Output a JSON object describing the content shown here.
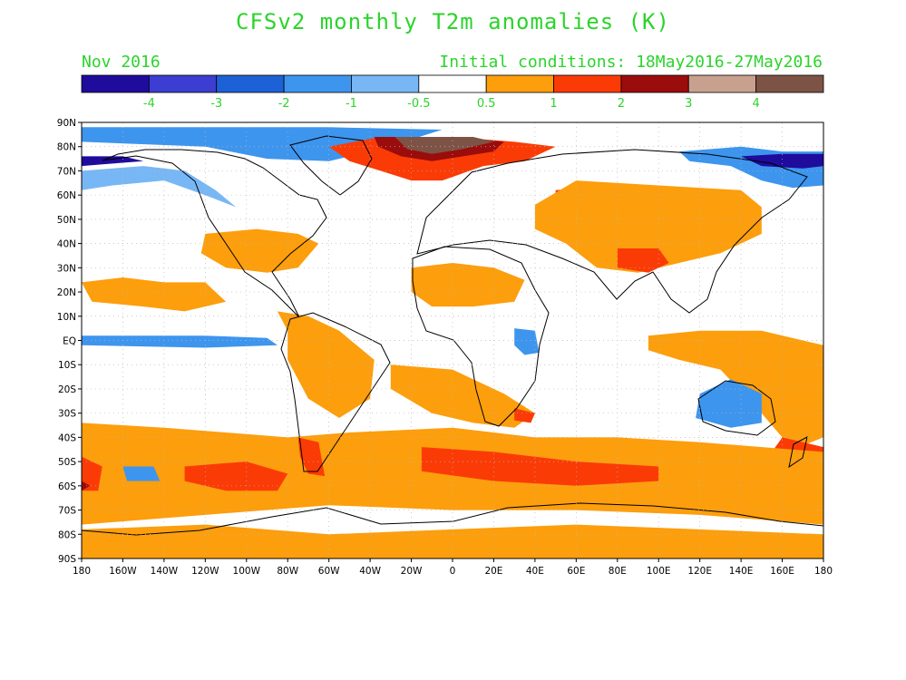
{
  "title": "CFSv2 monthly T2m anomalies (K)",
  "subtitle_left": "Nov 2016",
  "subtitle_right": "Initial conditions: 18May2016-27May2016",
  "colorbar": {
    "colors": [
      "#1f0b9c",
      "#3c3ed1",
      "#1d61d6",
      "#3d95ee",
      "#78b7f5",
      "#ffffff",
      "#fd9e0c",
      "#fb3b06",
      "#9b0c0c",
      "#c8a18e",
      "#7d5346"
    ],
    "labels": [
      "-4",
      "-3",
      "-2",
      "-1",
      "-0.5",
      "0.5",
      "1",
      "2",
      "3",
      "4"
    ]
  },
  "axes": {
    "lat_labels": [
      "90N",
      "80N",
      "70N",
      "60N",
      "50N",
      "40N",
      "30N",
      "20N",
      "10N",
      "EQ",
      "10S",
      "20S",
      "30S",
      "40S",
      "50S",
      "60S",
      "70S",
      "80S",
      "90S"
    ],
    "lon_labels": [
      "180",
      "160W",
      "140W",
      "120W",
      "100W",
      "80W",
      "60W",
      "40W",
      "20W",
      "0",
      "20E",
      "40E",
      "60E",
      "80E",
      "100E",
      "120E",
      "140E",
      "160E",
      "180"
    ],
    "lat_values": [
      90,
      80,
      70,
      60,
      50,
      40,
      30,
      20,
      10,
      0,
      -10,
      -20,
      -30,
      -40,
      -50,
      -60,
      -70,
      -80,
      -90
    ],
    "lon_values": [
      -180,
      -160,
      -140,
      -120,
      -100,
      -80,
      -60,
      -40,
      -20,
      0,
      20,
      40,
      60,
      80,
      100,
      120,
      140,
      160,
      180
    ]
  },
  "anomaly_regions": [
    {
      "color": "#3d95ee",
      "points": [
        [
          -180,
          82
        ],
        [
          -120,
          80
        ],
        [
          -90,
          75
        ],
        [
          -60,
          74
        ],
        [
          -40,
          78
        ],
        [
          -20,
          83
        ],
        [
          -5,
          87
        ],
        [
          -60,
          88
        ],
        [
          -120,
          88
        ],
        [
          -180,
          88
        ]
      ]
    },
    {
      "color": "#78b7f5",
      "points": [
        [
          -180,
          70
        ],
        [
          -150,
          72
        ],
        [
          -130,
          70
        ],
        [
          -115,
          62
        ],
        [
          -105,
          55
        ],
        [
          -120,
          60
        ],
        [
          -140,
          66
        ],
        [
          -165,
          64
        ],
        [
          -180,
          62
        ]
      ]
    },
    {
      "color": "#1f0b9c",
      "points": [
        [
          -180,
          72
        ],
        [
          -165,
          73
        ],
        [
          -150,
          74
        ],
        [
          -160,
          76
        ],
        [
          -180,
          76
        ]
      ]
    },
    {
      "color": "#3d95ee",
      "points": [
        [
          140,
          80
        ],
        [
          160,
          78
        ],
        [
          180,
          78
        ],
        [
          180,
          64
        ],
        [
          165,
          63
        ],
        [
          150,
          66
        ],
        [
          135,
          72
        ],
        [
          115,
          74
        ],
        [
          110,
          78
        ]
      ]
    },
    {
      "color": "#1f0b9c",
      "points": [
        [
          150,
          72
        ],
        [
          170,
          71
        ],
        [
          180,
          72
        ],
        [
          180,
          77
        ],
        [
          160,
          77
        ],
        [
          140,
          76
        ]
      ]
    },
    {
      "color": "#fb3b06",
      "points": [
        [
          -60,
          80
        ],
        [
          -35,
          84
        ],
        [
          0,
          84
        ],
        [
          30,
          82
        ],
        [
          50,
          80
        ],
        [
          35,
          74
        ],
        [
          15,
          72
        ],
        [
          -5,
          66
        ],
        [
          -20,
          66
        ],
        [
          -35,
          70
        ],
        [
          -50,
          74
        ]
      ]
    },
    {
      "color": "#9b0c0c",
      "points": [
        [
          -38,
          84
        ],
        [
          0,
          84
        ],
        [
          25,
          82
        ],
        [
          20,
          78
        ],
        [
          5,
          76
        ],
        [
          -10,
          74
        ],
        [
          -25,
          76
        ],
        [
          -36,
          80
        ]
      ]
    },
    {
      "color": "#7d5346",
      "points": [
        [
          -28,
          84
        ],
        [
          10,
          84
        ],
        [
          20,
          82
        ],
        [
          5,
          79
        ],
        [
          -10,
          77
        ],
        [
          -22,
          79
        ]
      ]
    },
    {
      "color": "#fb3b06",
      "points": [
        [
          50,
          62
        ],
        [
          80,
          64
        ],
        [
          110,
          60
        ],
        [
          140,
          58
        ],
        [
          140,
          48
        ],
        [
          120,
          42
        ],
        [
          100,
          46
        ],
        [
          70,
          46
        ],
        [
          50,
          50
        ]
      ]
    },
    {
      "color": "#fd9e0c",
      "points": [
        [
          40,
          56
        ],
        [
          60,
          66
        ],
        [
          100,
          64
        ],
        [
          140,
          62
        ],
        [
          150,
          55
        ],
        [
          150,
          44
        ],
        [
          130,
          36
        ],
        [
          110,
          32
        ],
        [
          90,
          28
        ],
        [
          70,
          30
        ],
        [
          55,
          40
        ],
        [
          40,
          46
        ]
      ]
    },
    {
      "color": "#fb3b06",
      "points": [
        [
          80,
          38
        ],
        [
          100,
          38
        ],
        [
          105,
          32
        ],
        [
          95,
          28
        ],
        [
          80,
          30
        ]
      ]
    },
    {
      "color": "#fd9e0c",
      "points": [
        [
          -120,
          44
        ],
        [
          -95,
          46
        ],
        [
          -75,
          44
        ],
        [
          -65,
          40
        ],
        [
          -75,
          30
        ],
        [
          -90,
          28
        ],
        [
          -110,
          30
        ],
        [
          -122,
          36
        ]
      ]
    },
    {
      "color": "#fd9e0c",
      "points": [
        [
          -180,
          24
        ],
        [
          -160,
          26
        ],
        [
          -140,
          24
        ],
        [
          -120,
          24
        ],
        [
          -110,
          16
        ],
        [
          -130,
          12
        ],
        [
          -150,
          14
        ],
        [
          -175,
          16
        ]
      ]
    },
    {
      "color": "#3d95ee",
      "points": [
        [
          -180,
          2
        ],
        [
          -120,
          2
        ],
        [
          -90,
          1
        ],
        [
          -85,
          -2
        ],
        0,
        [
          -120,
          -3
        ],
        [
          -180,
          -2
        ]
      ]
    },
    {
      "color": "#fd9e0c",
      "points": [
        [
          -20,
          30
        ],
        [
          0,
          32
        ],
        [
          20,
          30
        ],
        [
          35,
          25
        ],
        [
          30,
          16
        ],
        [
          10,
          14
        ],
        [
          -10,
          14
        ],
        [
          -20,
          20
        ]
      ]
    },
    {
      "color": "#fd9e0c",
      "points": [
        [
          -85,
          12
        ],
        [
          -70,
          10
        ],
        [
          -55,
          4
        ],
        [
          -38,
          -8
        ],
        [
          -40,
          -24
        ],
        [
          -55,
          -32
        ],
        [
          -70,
          -24
        ],
        [
          -80,
          -8
        ],
        [
          -80,
          4
        ]
      ]
    },
    {
      "color": "#fd9e0c",
      "points": [
        [
          -30,
          -10
        ],
        [
          0,
          -12
        ],
        [
          25,
          -22
        ],
        [
          40,
          -30
        ],
        [
          30,
          -36
        ],
        [
          10,
          -34
        ],
        [
          -10,
          -30
        ],
        [
          -30,
          -20
        ]
      ]
    },
    {
      "color": "#fb3b06",
      "points": [
        [
          30,
          -28
        ],
        [
          40,
          -30
        ],
        [
          38,
          -34
        ],
        [
          30,
          -33
        ]
      ]
    },
    {
      "color": "#3d95ee",
      "points": [
        [
          30,
          5
        ],
        [
          40,
          4
        ],
        [
          42,
          -5
        ],
        [
          35,
          -6
        ],
        [
          30,
          -2
        ]
      ]
    },
    {
      "color": "#fd9e0c",
      "points": [
        [
          95,
          2
        ],
        [
          120,
          4
        ],
        [
          150,
          4
        ],
        [
          170,
          0
        ],
        [
          180,
          -2
        ],
        [
          180,
          -40
        ],
        [
          165,
          -45
        ],
        [
          150,
          -30
        ],
        [
          130,
          -12
        ],
        [
          110,
          -8
        ],
        [
          95,
          -4
        ]
      ]
    },
    {
      "color": "#3d95ee",
      "points": [
        [
          120,
          -22
        ],
        [
          135,
          -16
        ],
        [
          150,
          -22
        ],
        [
          150,
          -34
        ],
        [
          135,
          -36
        ],
        [
          118,
          -32
        ]
      ]
    },
    {
      "color": "#fb3b06",
      "points": [
        [
          160,
          -40
        ],
        [
          180,
          -44
        ],
        [
          180,
          -64
        ],
        [
          165,
          -62
        ],
        [
          150,
          -55
        ],
        [
          155,
          -46
        ]
      ]
    },
    {
      "color": "#fd9e0c",
      "points": [
        [
          -180,
          -34
        ],
        [
          -140,
          -36
        ],
        [
          -110,
          -38
        ],
        [
          -80,
          -40
        ],
        [
          -50,
          -38
        ],
        [
          0,
          -36
        ],
        [
          40,
          -40
        ],
        [
          80,
          -40
        ],
        [
          120,
          -42
        ],
        [
          180,
          -46
        ],
        [
          180,
          -76
        ],
        [
          120,
          -72
        ],
        [
          60,
          -70
        ],
        [
          0,
          -70
        ],
        [
          -60,
          -68
        ],
        [
          -120,
          -72
        ],
        [
          -180,
          -76
        ]
      ]
    },
    {
      "color": "#fb3b06",
      "points": [
        [
          -130,
          -52
        ],
        [
          -100,
          -50
        ],
        [
          -80,
          -55
        ],
        [
          -85,
          -62
        ],
        [
          -110,
          -62
        ],
        [
          -130,
          -58
        ]
      ]
    },
    {
      "color": "#fb3b06",
      "points": [
        [
          -15,
          -44
        ],
        [
          20,
          -46
        ],
        [
          60,
          -50
        ],
        [
          100,
          -52
        ],
        [
          100,
          -58
        ],
        [
          60,
          -60
        ],
        [
          20,
          -58
        ],
        [
          -15,
          -54
        ]
      ]
    },
    {
      "color": "#fb3b06",
      "points": [
        [
          -180,
          -48
        ],
        [
          -170,
          -52
        ],
        [
          -172,
          -62
        ],
        [
          -180,
          -62
        ]
      ]
    },
    {
      "color": "#9b0c0c",
      "points": [
        [
          -180,
          -58
        ],
        [
          -176,
          -60
        ],
        [
          -180,
          -62
        ]
      ]
    },
    {
      "color": "#3d95ee",
      "points": [
        [
          -160,
          -52
        ],
        [
          -145,
          -52
        ],
        [
          -142,
          -58
        ],
        [
          -158,
          -58
        ]
      ]
    },
    {
      "color": "#fb3b06",
      "points": [
        [
          -75,
          -40
        ],
        [
          -65,
          -42
        ],
        [
          -62,
          -56
        ],
        [
          -70,
          -55
        ],
        [
          -74,
          -48
        ]
      ]
    },
    {
      "color": "#fd9e0c",
      "points": [
        [
          -180,
          -78
        ],
        [
          -120,
          -76
        ],
        [
          -60,
          -80
        ],
        [
          0,
          -78
        ],
        [
          60,
          -76
        ],
        [
          120,
          -78
        ],
        [
          180,
          -80
        ],
        [
          180,
          -90
        ],
        [
          -180,
          -90
        ]
      ]
    }
  ]
}
